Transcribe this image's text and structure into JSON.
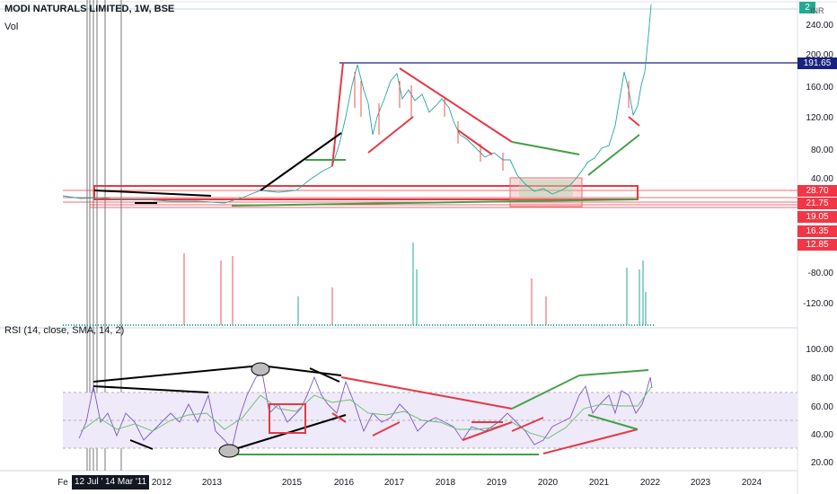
{
  "header": {
    "symbol_title": "MODI NATURALS LIMITED, 1W, BSE",
    "volume_label": "Vol",
    "rsi_label": "RSI (14, close, SMA, 14, 2)",
    "currency": "INR"
  },
  "price_axis": {
    "ticks": [
      "240.00",
      "200.00",
      "160.00",
      "120.00",
      "80.00",
      "40.00"
    ],
    "badges": [
      {
        "text": "191.65",
        "color": "#1a237e"
      },
      {
        "text": "28.70",
        "color": "#f23645"
      },
      {
        "text": "21.75",
        "color": "#f23645"
      },
      {
        "text": "19.05",
        "color": "#f23645"
      },
      {
        "text": "16.35",
        "color": "#f23645"
      },
      {
        "text": "12.85",
        "color": "#f23645"
      }
    ],
    "top_badge": {
      "text": "2",
      "color": "#22ab94"
    }
  },
  "volume_axis": {
    "ticks": [
      "-80.00",
      "-120.00"
    ]
  },
  "rsi_axis": {
    "ticks": [
      "100.00",
      "80.00",
      "60.00",
      "40.00",
      "20.00"
    ]
  },
  "time_axis": {
    "labels": [
      "2012",
      "2013",
      "2015",
      "2016",
      "2017",
      "2018",
      "2019",
      "2020",
      "2021",
      "2022",
      "2023",
      "2024"
    ],
    "cut_label": "Fe",
    "date_markers": [
      "12 Jul '10",
      "14 Mar '11"
    ]
  },
  "colors": {
    "resistance_line": "#1a237e",
    "trend_red": "#e53946",
    "trend_green": "#43a047",
    "trend_black": "#000000",
    "rsi_line": "#7e57c2",
    "rsi_sma": "#66bb6a",
    "rsi_band": "#efeaf9",
    "volume_up": "#26a69a",
    "volume_down": "#ef5350",
    "zone_fill": "#ef9a9a"
  }
}
